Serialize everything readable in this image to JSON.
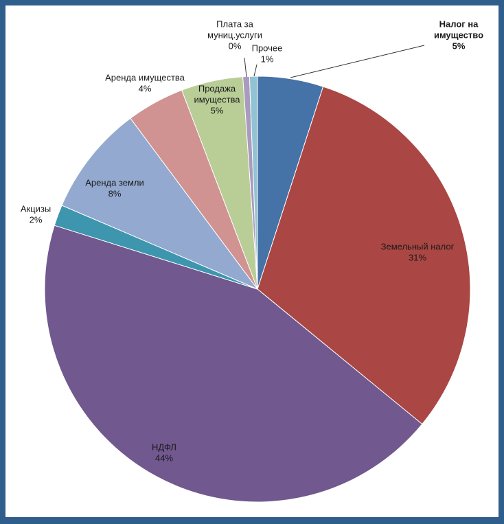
{
  "chart_data": {
    "type": "pie",
    "title": "",
    "slices": [
      {
        "label_lines": [
          "Налог на",
          "имущество"
        ],
        "percent_label": "5%",
        "value": 5.0,
        "color": "#4572a7",
        "bold": true
      },
      {
        "label_lines": [
          "Земельный налог"
        ],
        "percent_label": "31%",
        "value": 31.0,
        "color": "#aa4643"
      },
      {
        "label_lines": [
          "НДФЛ"
        ],
        "percent_label": "44%",
        "value": 44.0,
        "color": "#71588f"
      },
      {
        "label_lines": [
          "Акцизы"
        ],
        "percent_label": "2%",
        "value": 1.6,
        "color": "#3d96ae"
      },
      {
        "label_lines": [
          "Аренда земли"
        ],
        "percent_label": "8%",
        "value": 8.4,
        "color": "#93a9d0"
      },
      {
        "label_lines": [
          "Аренда имущества"
        ],
        "percent_label": "4%",
        "value": 4.4,
        "color": "#d09392"
      },
      {
        "label_lines": [
          "Продажа",
          "имущества"
        ],
        "percent_label": "5%",
        "value": 4.7,
        "color": "#b9cd96"
      },
      {
        "label_lines": [
          "Плата за",
          "муниц.услуги"
        ],
        "percent_label": "0%",
        "value": 0.5,
        "color": "#a99bbd"
      },
      {
        "label_lines": [
          "Прочее"
        ],
        "percent_label": "1%",
        "value": 0.6,
        "color": "#92c3d4"
      }
    ]
  }
}
